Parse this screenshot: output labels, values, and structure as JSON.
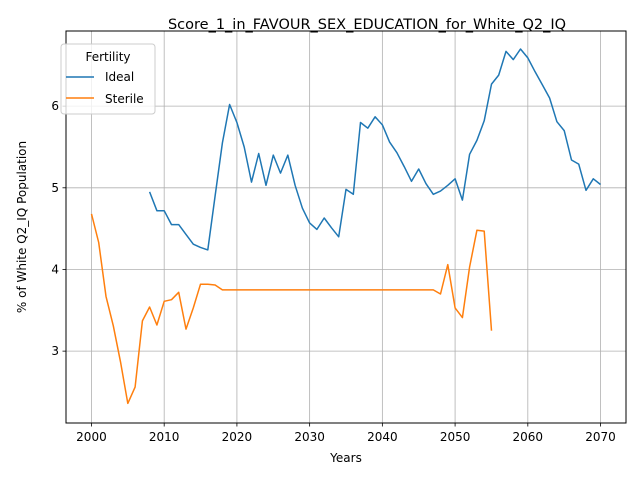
{
  "chart_data": {
    "type": "line",
    "title": "Score_1_in_FAVOUR_SEX_EDUCATION_for_White_Q2_IQ",
    "xlabel": "Years",
    "ylabel": "% of White Q2_IQ Population",
    "xlim": [
      1996.5,
      2073.5
    ],
    "ylim": [
      2.12,
      6.92
    ],
    "xticks": [
      2000,
      2010,
      2020,
      2030,
      2040,
      2050,
      2060,
      2070
    ],
    "yticks": [
      3,
      4,
      5,
      6
    ],
    "grid": true,
    "legend": {
      "title": "Fertility",
      "placement": "top-left"
    },
    "series": [
      {
        "name": "Ideal",
        "color": "#1f77b4",
        "x": [
          2008,
          2009,
          2010,
          2011,
          2012,
          2013,
          2014,
          2015,
          2016,
          2017,
          2018,
          2019,
          2020,
          2021,
          2022,
          2023,
          2024,
          2025,
          2026,
          2027,
          2028,
          2029,
          2030,
          2031,
          2032,
          2033,
          2034,
          2035,
          2036,
          2037,
          2038,
          2039,
          2040,
          2041,
          2042,
          2043,
          2044,
          2045,
          2046,
          2047,
          2048,
          2049,
          2050,
          2051,
          2052,
          2053,
          2054,
          2055,
          2056,
          2057,
          2058,
          2059,
          2060,
          2061,
          2062,
          2063,
          2064,
          2065,
          2066,
          2067,
          2068,
          2069,
          2070
        ],
        "y": [
          4.95,
          4.72,
          4.72,
          4.55,
          4.55,
          4.43,
          4.31,
          4.27,
          4.24,
          4.9,
          5.55,
          6.02,
          5.8,
          5.5,
          5.07,
          5.42,
          5.03,
          5.4,
          5.18,
          5.4,
          5.03,
          4.75,
          4.57,
          4.49,
          4.63,
          4.51,
          4.4,
          4.98,
          4.92,
          5.8,
          5.73,
          5.87,
          5.77,
          5.56,
          5.43,
          5.26,
          5.08,
          5.23,
          5.05,
          4.92,
          4.96,
          5.03,
          5.11,
          4.85,
          5.41,
          5.58,
          5.82,
          6.27,
          6.38,
          6.67,
          6.57,
          6.7,
          6.59,
          6.42,
          6.26,
          6.1,
          5.81,
          5.7,
          5.34,
          5.29,
          4.97,
          5.11,
          5.04
        ]
      },
      {
        "name": "Sterile",
        "color": "#ff7f0e",
        "x": [
          2000,
          2001,
          2002,
          2003,
          2004,
          2005,
          2006,
          2007,
          2008,
          2009,
          2010,
          2011,
          2012,
          2013,
          2014,
          2015,
          2016,
          2017,
          2018,
          2019,
          2020,
          2021,
          2022,
          2023,
          2024,
          2025,
          2026,
          2027,
          2028,
          2029,
          2030,
          2031,
          2032,
          2033,
          2034,
          2035,
          2036,
          2037,
          2038,
          2039,
          2040,
          2041,
          2042,
          2043,
          2044,
          2045,
          2046,
          2047,
          2048,
          2049,
          2050,
          2051,
          2052,
          2053,
          2054,
          2055
        ],
        "y": [
          4.68,
          4.33,
          3.67,
          3.31,
          2.87,
          2.36,
          2.56,
          3.37,
          3.54,
          3.32,
          3.61,
          3.63,
          3.72,
          3.27,
          3.53,
          3.82,
          3.82,
          3.81,
          3.75,
          3.75,
          3.75,
          3.75,
          3.75,
          3.75,
          3.75,
          3.75,
          3.75,
          3.75,
          3.75,
          3.75,
          3.75,
          3.75,
          3.75,
          3.75,
          3.75,
          3.75,
          3.75,
          3.75,
          3.75,
          3.75,
          3.75,
          3.75,
          3.75,
          3.75,
          3.75,
          3.75,
          3.75,
          3.75,
          3.7,
          4.06,
          3.53,
          3.41,
          4.03,
          4.48,
          4.47,
          3.25
        ]
      }
    ]
  }
}
